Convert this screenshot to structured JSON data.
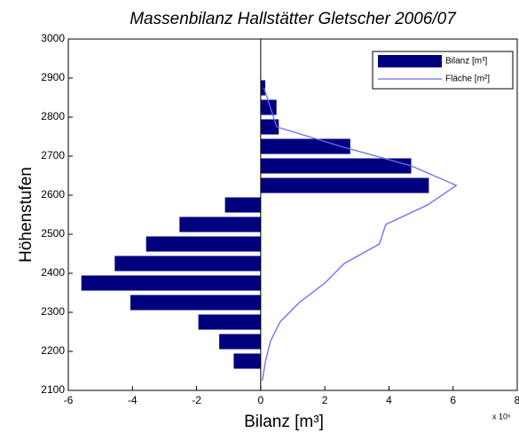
{
  "chart_data": {
    "type": "barh",
    "title": "Massenbilanz Hallstätter Gletscher 2006/07",
    "xlabel": "Bilanz [m³]",
    "ylabel": "Höhenstufen",
    "x_multiplier": "x 10⁵",
    "xlim": [
      -6,
      8
    ],
    "xticks": [
      -6,
      -4,
      -2,
      0,
      2,
      4,
      6,
      8
    ],
    "ylim": [
      2100,
      3000
    ],
    "yticks": [
      2100,
      2200,
      2300,
      2400,
      2500,
      2600,
      2700,
      2800,
      2900,
      3000
    ],
    "y": [
      2175,
      2225,
      2275,
      2325,
      2375,
      2425,
      2475,
      2525,
      2575,
      2625,
      2675,
      2725,
      2775,
      2825,
      2875
    ],
    "bar_height": 40,
    "series": [
      {
        "name": "Bilanz [m³]",
        "type": "bar",
        "color": "#00007f",
        "values": [
          -0.85,
          -1.3,
          -1.95,
          -4.07,
          -5.6,
          -4.56,
          -3.58,
          -2.54,
          -1.12,
          5.25,
          4.7,
          2.8,
          0.57,
          0.5,
          0.15
        ]
      },
      {
        "name": "Fläche [m²]",
        "type": "line",
        "color": "#6b6bef",
        "y": [
          2125,
          2175,
          2225,
          2275,
          2325,
          2375,
          2425,
          2475,
          2525,
          2575,
          2625,
          2675,
          2725,
          2775,
          2825,
          2875
        ],
        "values": [
          0.05,
          0.15,
          0.3,
          0.6,
          1.2,
          2.0,
          2.6,
          3.7,
          3.9,
          5.2,
          6.1,
          4.7,
          2.5,
          0.5,
          0.3,
          0.1
        ]
      }
    ],
    "legend": "upper right"
  }
}
